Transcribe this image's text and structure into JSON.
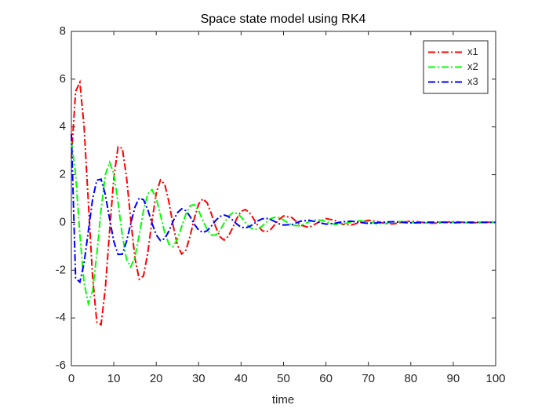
{
  "chart_data": {
    "type": "line",
    "title": "Space state model using RK4",
    "x_label": "time",
    "x": [
      0,
      1,
      2,
      3,
      4,
      5,
      6,
      7,
      8,
      9,
      10,
      11,
      12,
      13,
      14,
      15,
      16,
      17,
      18,
      19,
      20,
      21,
      22,
      23,
      24,
      25,
      26,
      27,
      28,
      29,
      30,
      31,
      32,
      33,
      34,
      35,
      36,
      37,
      38,
      39,
      40,
      41,
      42,
      43,
      44,
      45,
      46,
      47,
      48,
      49,
      50,
      52,
      54,
      56,
      58,
      60,
      62,
      64,
      66,
      68,
      70,
      72,
      74,
      76,
      78,
      80,
      82,
      84,
      86,
      88,
      90,
      92,
      94,
      96,
      98,
      100
    ],
    "series": [
      {
        "name": "x1",
        "color": "#ff0000",
        "values": [
          2.71,
          5.49,
          5.87,
          4.0,
          0.84,
          -2.28,
          -4.18,
          -4.28,
          -2.77,
          -0.38,
          1.86,
          3.16,
          3.11,
          1.89,
          0.1,
          -1.52,
          -2.38,
          -2.24,
          -1.28,
          0.06,
          1.22,
          1.78,
          1.61,
          0.85,
          -0.14,
          -0.96,
          -1.32,
          -1.16,
          -0.56,
          0.18,
          0.77,
          0.99,
          0.82,
          0.36,
          -0.18,
          -0.6,
          -0.74,
          -0.58,
          -0.23,
          0.17,
          0.46,
          0.54,
          0.41,
          0.14,
          -0.15,
          -0.35,
          -0.39,
          -0.29,
          -0.08,
          0.13,
          0.27,
          0.2,
          -0.11,
          -0.21,
          -0.02,
          0.16,
          0.09,
          -0.08,
          -0.11,
          0,
          0.09,
          0.04,
          -0.05,
          -0.06,
          0.01,
          0.05,
          0.02,
          -0.03,
          -0.03,
          0.01,
          0.03,
          0.01,
          -0.02,
          -0.01,
          0.01,
          0.01
        ]
      },
      {
        "name": "x2",
        "color": "#00ff00",
        "values": [
          3.4,
          2.03,
          -0.5,
          -2.54,
          -3.4,
          -2.87,
          -1.32,
          0.54,
          1.99,
          2.52,
          2.04,
          0.84,
          -0.53,
          -1.55,
          -1.86,
          -1.44,
          -0.52,
          0.49,
          1.19,
          1.37,
          1.01,
          0.31,
          -0.43,
          -0.91,
          -1.01,
          -0.7,
          -0.17,
          0.36,
          0.7,
          0.74,
          0.49,
          0.09,
          -0.3,
          -0.53,
          -0.53,
          -0.34,
          -0.03,
          0.25,
          0.4,
          0.38,
          0.23,
          0,
          -0.2,
          -0.3,
          -0.28,
          -0.15,
          0.02,
          0.16,
          0.22,
          0.2,
          0.1,
          -0.12,
          -0.14,
          0.03,
          0.12,
          0.04,
          -0.08,
          -0.07,
          0.02,
          0.07,
          0.02,
          -0.05,
          -0.04,
          0.02,
          0.04,
          0,
          -0.03,
          -0.02,
          0.01,
          0.02,
          0,
          -0.01,
          -0.01,
          0.01,
          0.01,
          0
        ]
      },
      {
        "name": "x3",
        "color": "#0000ff",
        "values": [
          3.7,
          -2.33,
          -2.5,
          -1.7,
          -0.36,
          0.97,
          1.77,
          1.81,
          1.17,
          0.16,
          -0.79,
          -1.34,
          -1.33,
          -0.8,
          -0.04,
          0.65,
          1.02,
          0.95,
          0.54,
          -0.03,
          -0.52,
          -0.76,
          -0.68,
          -0.36,
          0.06,
          0.41,
          0.57,
          0.49,
          0.24,
          -0.08,
          -0.32,
          -0.42,
          -0.35,
          -0.15,
          0.08,
          0.25,
          0.31,
          0.25,
          0.1,
          -0.07,
          -0.2,
          -0.23,
          -0.17,
          -0.06,
          0.07,
          0.15,
          0.17,
          0.12,
          0.03,
          -0.06,
          -0.11,
          -0.09,
          0.05,
          0.09,
          0.01,
          -0.07,
          -0.04,
          0.03,
          0.05,
          0,
          -0.04,
          -0.02,
          0.02,
          0.03,
          0,
          -0.02,
          -0.01,
          0.01,
          0.01,
          0,
          -0.01,
          0,
          0.01,
          0,
          0,
          0
        ]
      }
    ],
    "xlim": [
      0,
      100
    ],
    "xticks": [
      0,
      10,
      20,
      30,
      40,
      50,
      60,
      70,
      80,
      90,
      100
    ],
    "ylim": [
      -6,
      8
    ],
    "yticks": [
      -6,
      -4,
      -2,
      0,
      2,
      4,
      6,
      8
    ],
    "line_style": "dashdot",
    "legend": "northeast",
    "grid": false
  }
}
